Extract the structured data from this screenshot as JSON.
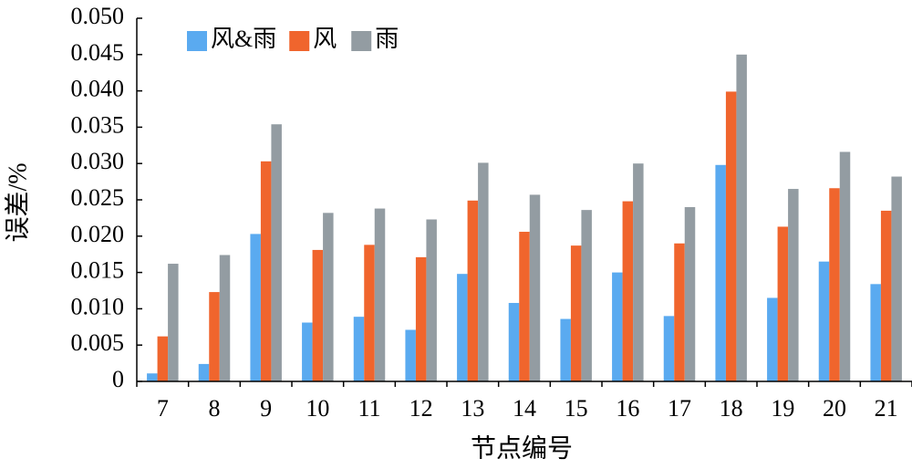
{
  "chart_data": {
    "type": "bar",
    "xlabel": "节点编号",
    "ylabel": "误差/%",
    "ylim": [
      0,
      0.05
    ],
    "yticks": [
      "0",
      "0.005",
      "0.010",
      "0.015",
      "0.020",
      "0.025",
      "0.030",
      "0.035",
      "0.040",
      "0.045",
      "0.050"
    ],
    "categories": [
      "7",
      "8",
      "9",
      "10",
      "11",
      "12",
      "13",
      "14",
      "15",
      "16",
      "17",
      "18",
      "19",
      "20",
      "21"
    ],
    "legend_position": "top-left",
    "grid": false,
    "series": [
      {
        "name": "风&雨",
        "color": "#5aaaf0",
        "values": [
          0.0011,
          0.0024,
          0.0203,
          0.0081,
          0.0089,
          0.0071,
          0.0148,
          0.0108,
          0.0086,
          0.015,
          0.009,
          0.0298,
          0.0115,
          0.0165,
          0.0134
        ]
      },
      {
        "name": "风",
        "color": "#f0652d",
        "values": [
          0.0062,
          0.0123,
          0.0303,
          0.0181,
          0.0188,
          0.0171,
          0.0249,
          0.0206,
          0.0187,
          0.0248,
          0.019,
          0.0399,
          0.0213,
          0.0266,
          0.0235
        ]
      },
      {
        "name": "雨",
        "color": "#939ca2",
        "values": [
          0.0162,
          0.0174,
          0.0354,
          0.0232,
          0.0238,
          0.0223,
          0.0301,
          0.0257,
          0.0236,
          0.03,
          0.024,
          0.045,
          0.0265,
          0.0316,
          0.0282
        ]
      }
    ]
  }
}
